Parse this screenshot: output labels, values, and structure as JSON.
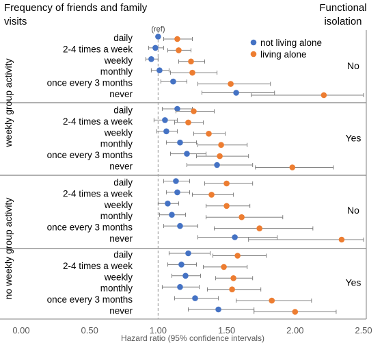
{
  "header": {
    "left_title": "Frequency of friends and family visits",
    "right_title": "Functional isolation"
  },
  "chart_data": {
    "type": "scatter",
    "subtype": "forest-plot",
    "xlabel": "Hazard ratio (95% confidence intervals)",
    "xlim": [
      0,
      2.5
    ],
    "xticks": [
      "0.00",
      "0.50",
      "1.00",
      "1.50",
      "2.00",
      "2.50"
    ],
    "reference_line": {
      "x": 1.0,
      "label": "(ref)",
      "style": "dashed"
    },
    "legend": {
      "placement": "top-right",
      "items": [
        {
          "name": "not living alone",
          "color": "#4472C4"
        },
        {
          "name": "living alone",
          "color": "#ED7D31"
        }
      ]
    },
    "colors": {
      "not_living_alone": "#4472C4",
      "living_alone": "#ED7D31",
      "error_bar": "#7f7f7f",
      "divider": "#808080",
      "ref_line": "#a6a6a6"
    },
    "categories": [
      "daily",
      "2-4 times a week",
      "weekly",
      "monthly",
      "once every 3 months",
      "never"
    ],
    "outer_groups": [
      "weekly group activity",
      "no weekly group activity"
    ],
    "panels": [
      {
        "group_activity": "weekly group activity",
        "functional_isolation": "No",
        "not_living_alone": [
          {
            "est": 1.0,
            "lo": 1.0,
            "hi": 1.0
          },
          {
            "est": 0.98,
            "lo": 0.93,
            "hi": 1.04
          },
          {
            "est": 0.95,
            "lo": 0.91,
            "hi": 1.0
          },
          {
            "est": 1.01,
            "lo": 0.95,
            "hi": 1.08
          },
          {
            "est": 1.11,
            "lo": 1.02,
            "hi": 1.21
          },
          {
            "est": 1.57,
            "lo": 1.32,
            "hi": 1.85
          }
        ],
        "living_alone": [
          {
            "est": 1.14,
            "lo": 1.04,
            "hi": 1.25
          },
          {
            "est": 1.15,
            "lo": 1.07,
            "hi": 1.24
          },
          {
            "est": 1.24,
            "lo": 1.15,
            "hi": 1.34
          },
          {
            "est": 1.25,
            "lo": 1.09,
            "hi": 1.43
          },
          {
            "est": 1.53,
            "lo": 1.29,
            "hi": 1.82
          },
          {
            "est": 2.21,
            "lo": 1.68,
            "hi": 2.5
          }
        ]
      },
      {
        "group_activity": "weekly group activity",
        "functional_isolation": "Yes",
        "not_living_alone": [
          {
            "est": 1.14,
            "lo": 1.03,
            "hi": 1.25
          },
          {
            "est": 1.05,
            "lo": 0.97,
            "hi": 1.14
          },
          {
            "est": 1.06,
            "lo": 0.99,
            "hi": 1.14
          },
          {
            "est": 1.16,
            "lo": 1.06,
            "hi": 1.28
          },
          {
            "est": 1.21,
            "lo": 1.09,
            "hi": 1.35
          },
          {
            "est": 1.43,
            "lo": 1.21,
            "hi": 1.69
          }
        ],
        "living_alone": [
          {
            "est": 1.26,
            "lo": 1.13,
            "hi": 1.41
          },
          {
            "est": 1.22,
            "lo": 1.12,
            "hi": 1.33
          },
          {
            "est": 1.37,
            "lo": 1.26,
            "hi": 1.49
          },
          {
            "est": 1.46,
            "lo": 1.29,
            "hi": 1.65
          },
          {
            "est": 1.45,
            "lo": 1.28,
            "hi": 1.66
          },
          {
            "est": 1.98,
            "lo": 1.71,
            "hi": 2.28
          }
        ]
      },
      {
        "group_activity": "no weekly group activity",
        "functional_isolation": "No",
        "not_living_alone": [
          {
            "est": 1.13,
            "lo": 1.04,
            "hi": 1.23
          },
          {
            "est": 1.14,
            "lo": 1.06,
            "hi": 1.23
          },
          {
            "est": 1.07,
            "lo": 1.0,
            "hi": 1.15
          },
          {
            "est": 1.1,
            "lo": 1.01,
            "hi": 1.2
          },
          {
            "est": 1.16,
            "lo": 1.04,
            "hi": 1.29
          },
          {
            "est": 1.56,
            "lo": 1.29,
            "hi": 1.87
          }
        ],
        "living_alone": [
          {
            "est": 1.5,
            "lo": 1.34,
            "hi": 1.69
          },
          {
            "est": 1.39,
            "lo": 1.25,
            "hi": 1.55
          },
          {
            "est": 1.5,
            "lo": 1.35,
            "hi": 1.67
          },
          {
            "est": 1.61,
            "lo": 1.35,
            "hi": 1.91
          },
          {
            "est": 1.74,
            "lo": 1.41,
            "hi": 2.13
          },
          {
            "est": 2.34,
            "lo": 1.66,
            "hi": 2.5
          }
        ]
      },
      {
        "group_activity": "no weekly group activity",
        "functional_isolation": "Yes",
        "not_living_alone": [
          {
            "est": 1.22,
            "lo": 1.08,
            "hi": 1.38
          },
          {
            "est": 1.17,
            "lo": 1.07,
            "hi": 1.28
          },
          {
            "est": 1.2,
            "lo": 1.1,
            "hi": 1.31
          },
          {
            "est": 1.16,
            "lo": 1.03,
            "hi": 1.3
          },
          {
            "est": 1.27,
            "lo": 1.12,
            "hi": 1.44
          },
          {
            "est": 1.44,
            "lo": 1.22,
            "hi": 1.7
          }
        ],
        "living_alone": [
          {
            "est": 1.58,
            "lo": 1.4,
            "hi": 1.79
          },
          {
            "est": 1.48,
            "lo": 1.33,
            "hi": 1.65
          },
          {
            "est": 1.55,
            "lo": 1.42,
            "hi": 1.69
          },
          {
            "est": 1.54,
            "lo": 1.36,
            "hi": 1.75
          },
          {
            "est": 1.83,
            "lo": 1.57,
            "hi": 2.12
          },
          {
            "est": 2.0,
            "lo": 1.7,
            "hi": 2.3
          }
        ]
      }
    ]
  }
}
